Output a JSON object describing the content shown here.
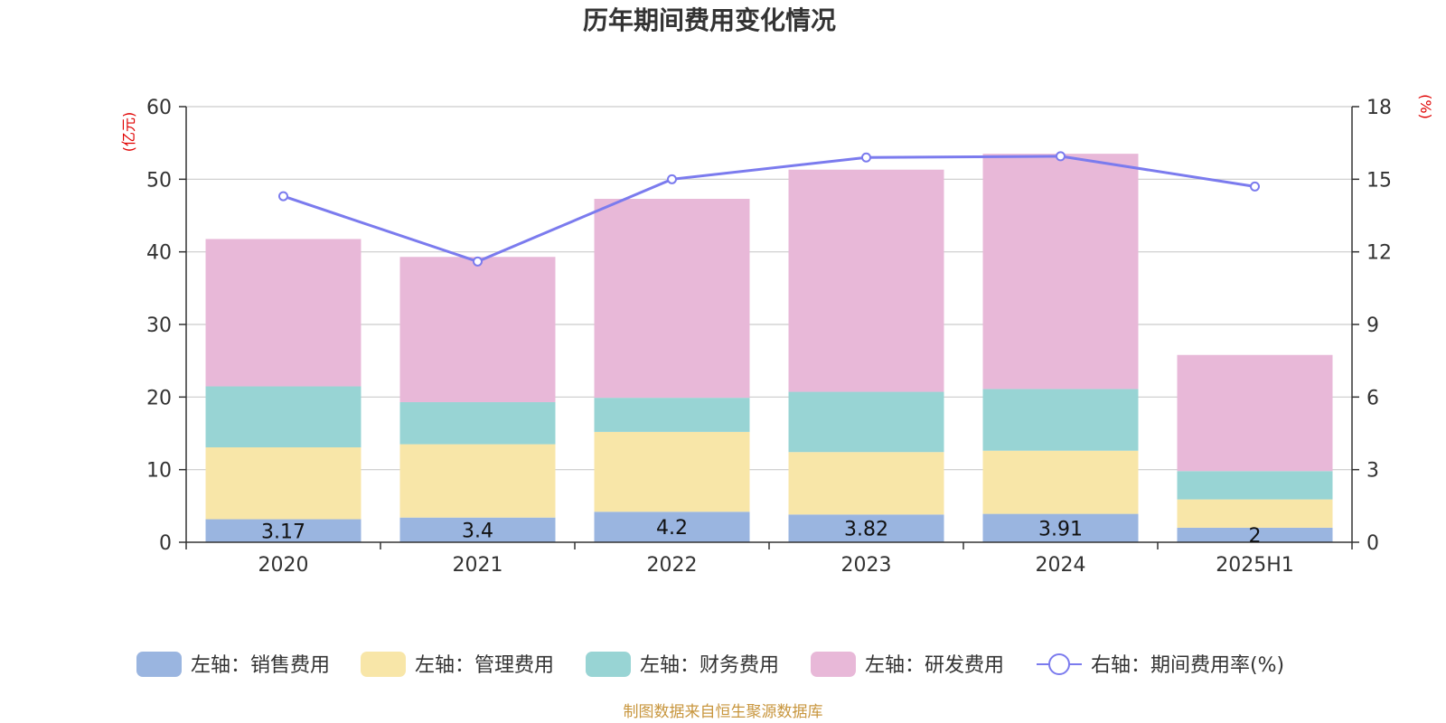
{
  "chart_data": {
    "type": "bar",
    "title": "历年期间费用变化情况",
    "source": "制图数据来自恒生聚源数据库",
    "categories": [
      "2020",
      "2021",
      "2022",
      "2023",
      "2024",
      "2025H1"
    ],
    "y_left": {
      "label": "(亿元)",
      "range": [
        0,
        60
      ],
      "ticks": [
        "0",
        "10",
        "20",
        "30",
        "40",
        "50",
        "60"
      ]
    },
    "y_right": {
      "label": "(%)",
      "range": [
        0,
        18
      ],
      "ticks": [
        "0",
        "3",
        "6",
        "9",
        "12",
        "15",
        "18"
      ]
    },
    "stacked": true,
    "series": [
      {
        "name": "左轴：销售费用",
        "type": "bar",
        "axis": "left",
        "color": "#9ab5e0",
        "values": [
          3.17,
          3.4,
          4.2,
          3.82,
          3.91,
          2
        ],
        "labels": [
          "3.17",
          "3.4",
          "4.2",
          "3.82",
          "3.91",
          "2"
        ]
      },
      {
        "name": "左轴：管理费用",
        "type": "bar",
        "axis": "left",
        "color": "#f8e6a8",
        "values": [
          9.9,
          10.1,
          11.0,
          8.6,
          8.7,
          3.9
        ]
      },
      {
        "name": "左轴：财务费用",
        "type": "bar",
        "axis": "left",
        "color": "#98d4d4",
        "values": [
          8.4,
          5.8,
          4.7,
          8.3,
          8.5,
          3.9
        ]
      },
      {
        "name": "左轴：研发费用",
        "type": "bar",
        "axis": "left",
        "color": "#e8b8d8",
        "values": [
          20.3,
          20.0,
          27.4,
          30.6,
          32.4,
          16.0
        ]
      },
      {
        "name": "右轴：期间费用率(%)",
        "type": "line",
        "axis": "right",
        "color": "#7b7bee",
        "values": [
          14.3,
          11.6,
          15.0,
          15.9,
          15.95,
          14.7
        ]
      }
    ],
    "grid": true,
    "legend_position": "bottom"
  }
}
